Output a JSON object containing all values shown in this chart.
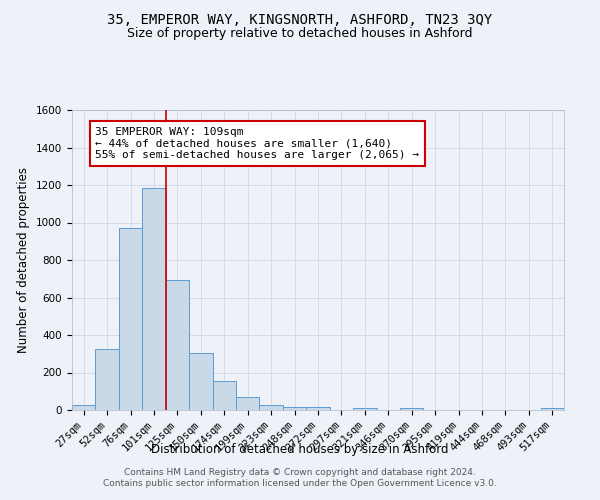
{
  "title": "35, EMPEROR WAY, KINGSNORTH, ASHFORD, TN23 3QY",
  "subtitle": "Size of property relative to detached houses in Ashford",
  "xlabel": "Distribution of detached houses by size in Ashford",
  "ylabel": "Number of detached properties",
  "categories": [
    "27sqm",
    "52sqm",
    "76sqm",
    "101sqm",
    "125sqm",
    "150sqm",
    "174sqm",
    "199sqm",
    "223sqm",
    "248sqm",
    "272sqm",
    "297sqm",
    "321sqm",
    "346sqm",
    "370sqm",
    "395sqm",
    "419sqm",
    "444sqm",
    "468sqm",
    "493sqm",
    "517sqm"
  ],
  "values": [
    25,
    325,
    970,
    1185,
    695,
    305,
    155,
    70,
    25,
    18,
    18,
    0,
    13,
    0,
    13,
    0,
    0,
    0,
    0,
    0,
    13
  ],
  "bar_color": "#c9d9e8",
  "bar_edge_color": "#5b9bd5",
  "vline_x": 3.5,
  "vline_color": "#cc0000",
  "annotation_text": "35 EMPEROR WAY: 109sqm\n← 44% of detached houses are smaller (1,640)\n55% of semi-detached houses are larger (2,065) →",
  "annotation_box_color": "white",
  "annotation_box_edge": "#cc0000",
  "ylim": [
    0,
    1600
  ],
  "yticks": [
    0,
    200,
    400,
    600,
    800,
    1000,
    1200,
    1400,
    1600
  ],
  "footer_text": "Contains HM Land Registry data © Crown copyright and database right 2024.\nContains public sector information licensed under the Open Government Licence v3.0.",
  "bg_color": "#eef2f8",
  "grid_color": "#d0d8e8",
  "title_fontsize": 10,
  "subtitle_fontsize": 9,
  "axis_label_fontsize": 8.5,
  "tick_fontsize": 7.5,
  "footer_fontsize": 6.5,
  "annotation_fontsize": 8
}
